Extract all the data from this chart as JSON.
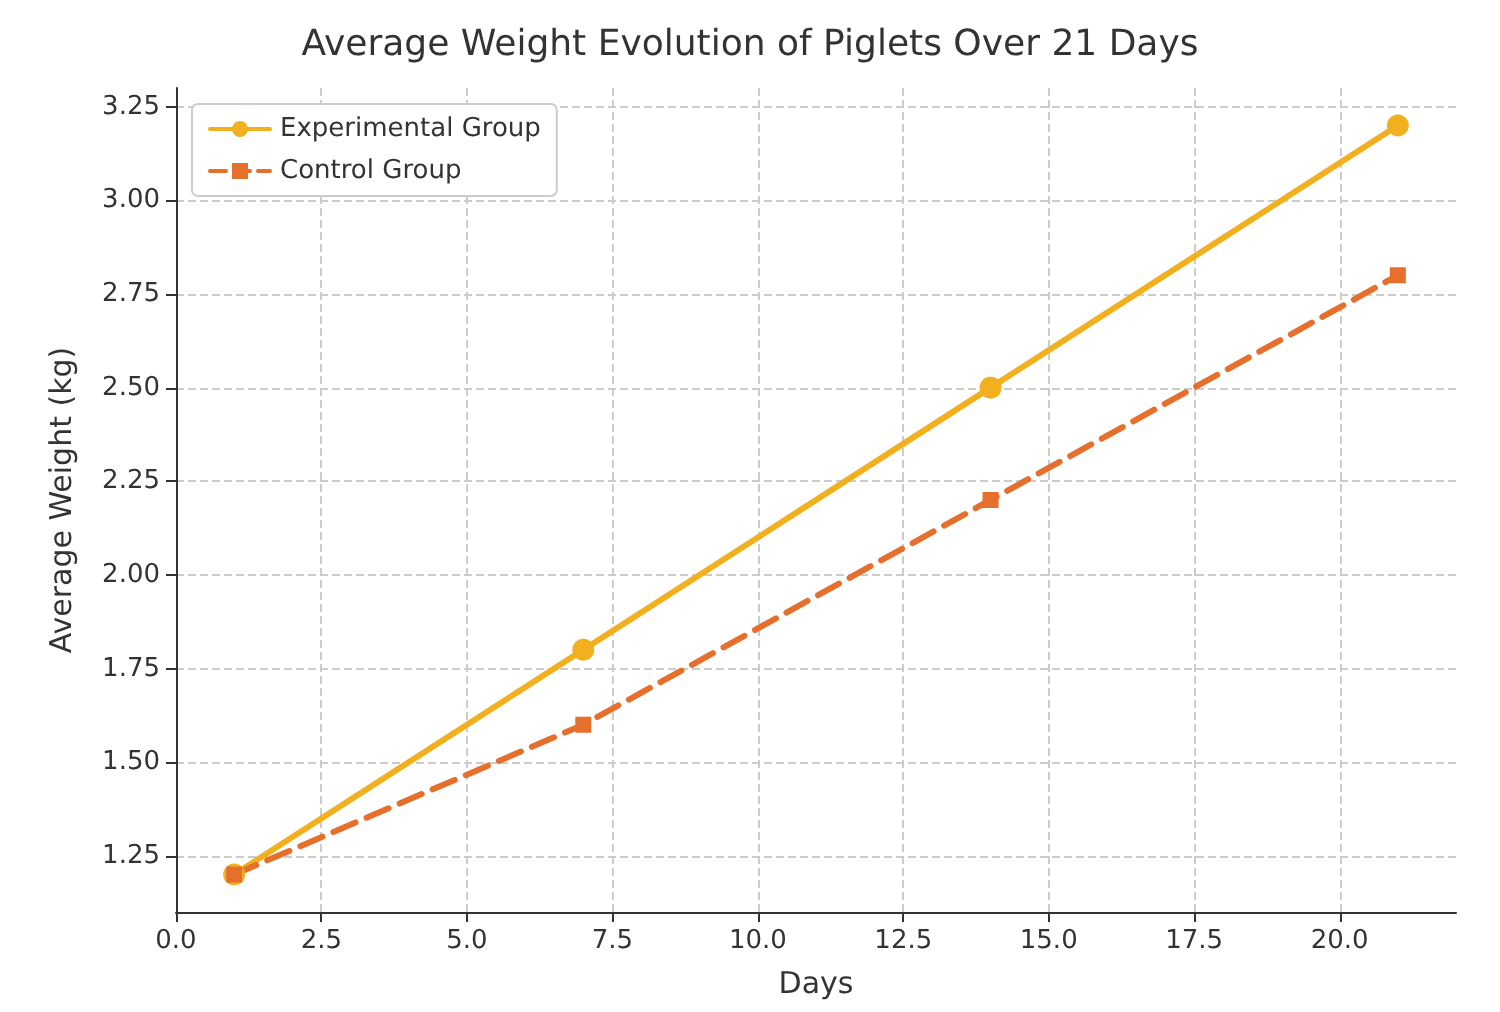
{
  "chart_data": {
    "type": "line",
    "title": "Average Weight Evolution of Piglets Over 21 Days",
    "xlabel": "Days",
    "ylabel": "Average Weight (kg)",
    "series": [
      {
        "name": "Experimental Group",
        "color": "#f2b01e",
        "x": [
          1,
          7,
          14,
          21
        ],
        "values": [
          1.2,
          1.8,
          2.5,
          3.2
        ],
        "marker": "circle",
        "line_style": "solid"
      },
      {
        "name": "Control Group",
        "color": "#e66f2c",
        "x": [
          1,
          7,
          14,
          21
        ],
        "values": [
          1.2,
          1.6,
          2.2,
          2.8
        ],
        "marker": "square",
        "line_style": "dashed"
      }
    ],
    "xlim": [
      0,
      22
    ],
    "xticks": [
      {
        "value": 0,
        "label": "0.0"
      },
      {
        "value": 2.5,
        "label": "2.5"
      },
      {
        "value": 5,
        "label": "5.0"
      },
      {
        "value": 7.5,
        "label": "7.5"
      },
      {
        "value": 10,
        "label": "10.0"
      },
      {
        "value": 12.5,
        "label": "12.5"
      },
      {
        "value": 15,
        "label": "15.0"
      },
      {
        "value": 17.5,
        "label": "17.5"
      },
      {
        "value": 20,
        "label": "20.0"
      }
    ],
    "ylim": [
      1.1,
      3.3
    ],
    "yticks": [
      {
        "value": 1.25,
        "label": "1.25"
      },
      {
        "value": 1.5,
        "label": "1.50"
      },
      {
        "value": 1.75,
        "label": "1.75"
      },
      {
        "value": 2,
        "label": "2.00"
      },
      {
        "value": 2.25,
        "label": "2.25"
      },
      {
        "value": 2.5,
        "label": "2.50"
      },
      {
        "value": 2.75,
        "label": "2.75"
      },
      {
        "value": 3,
        "label": "3.00"
      },
      {
        "value": 3.25,
        "label": "3.25"
      }
    ],
    "grid": true,
    "legend": "top left"
  }
}
